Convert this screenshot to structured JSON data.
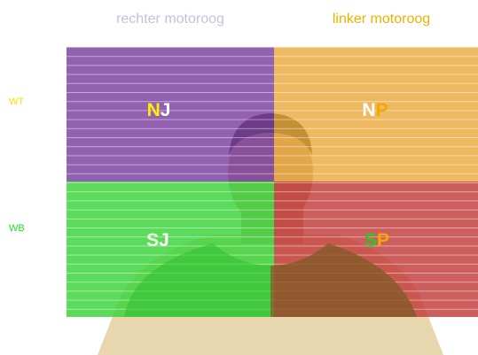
{
  "headers": {
    "right_eye": "rechter motoroog",
    "left_eye": "linker motoroog"
  },
  "rows": {
    "top": "WT",
    "bottom": "WB"
  },
  "quadrants": [
    {
      "letters": [
        "N",
        "J"
      ]
    },
    {
      "letters": [
        "N",
        "P"
      ]
    },
    {
      "letters": [
        "S",
        "J"
      ]
    },
    {
      "letters": [
        "S",
        "P"
      ]
    }
  ]
}
